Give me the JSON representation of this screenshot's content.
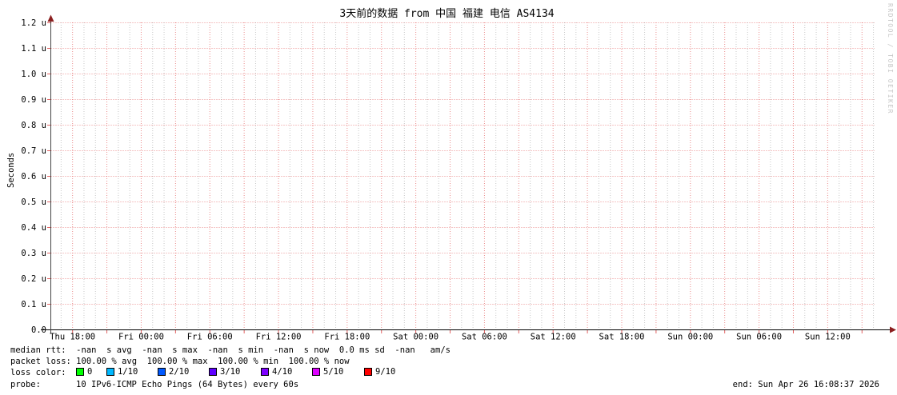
{
  "title": "3天前的数据 from 中国 福建 电信 AS4134",
  "watermark": "RRDTOOL / TOBI OETIKER",
  "chart_data": {
    "type": "line",
    "title": "3天前的数据 from 中国 福建 电信 AS4134",
    "xlabel": "",
    "ylabel": "Seconds",
    "y_ticks": [
      "0.0",
      "0.1 u",
      "0.2 u",
      "0.3 u",
      "0.4 u",
      "0.5 u",
      "0.6 u",
      "0.7 u",
      "0.8 u",
      "0.9 u",
      "1.0 u",
      "1.1 u",
      "1.2 u"
    ],
    "ylim_seconds": [
      0,
      1.2e-06
    ],
    "x_ticks": [
      "Thu 18:00",
      "Fri 00:00",
      "Fri 06:00",
      "Fri 12:00",
      "Fri 18:00",
      "Sat 00:00",
      "Sat 06:00",
      "Sat 12:00",
      "Sat 18:00",
      "Sun 00:00",
      "Sun 06:00",
      "Sun 12:00"
    ],
    "x_range_hours": 72,
    "grid": true,
    "legend_position": "bottom",
    "series": []
  },
  "legend": {
    "median_rtt": "median rtt:  -nan  s avg  -nan  s max  -nan  s min  -nan  s now  0.0 ms sd  -nan   am/s",
    "packet_loss": "packet loss: 100.00 % avg  100.00 % max  100.00 % min  100.00 % now",
    "loss_color_label": "loss color:",
    "loss_colors": [
      {
        "label": "0",
        "color": "#00ff00"
      },
      {
        "label": "1/10",
        "color": "#00b8ff"
      },
      {
        "label": "2/10",
        "color": "#0059ff"
      },
      {
        "label": "3/10",
        "color": "#5e00ff"
      },
      {
        "label": "4/10",
        "color": "#7e00ff"
      },
      {
        "label": "5/10",
        "color": "#dd00ff"
      },
      {
        "label": "9/10",
        "color": "#ff0000"
      }
    ],
    "probe_label": "probe:",
    "probe_text": "10 IPv6-ICMP Echo Pings (64 Bytes) every 60s",
    "end_text": "end: Sun Apr 26 16:08:37 2026"
  },
  "colors": {
    "major_grid": "#e05050",
    "minor_grid": "#909090",
    "x_axis": "#000000",
    "y_axis": "#444444",
    "arrow": "#8b1f1f",
    "background": "#ffffff"
  }
}
